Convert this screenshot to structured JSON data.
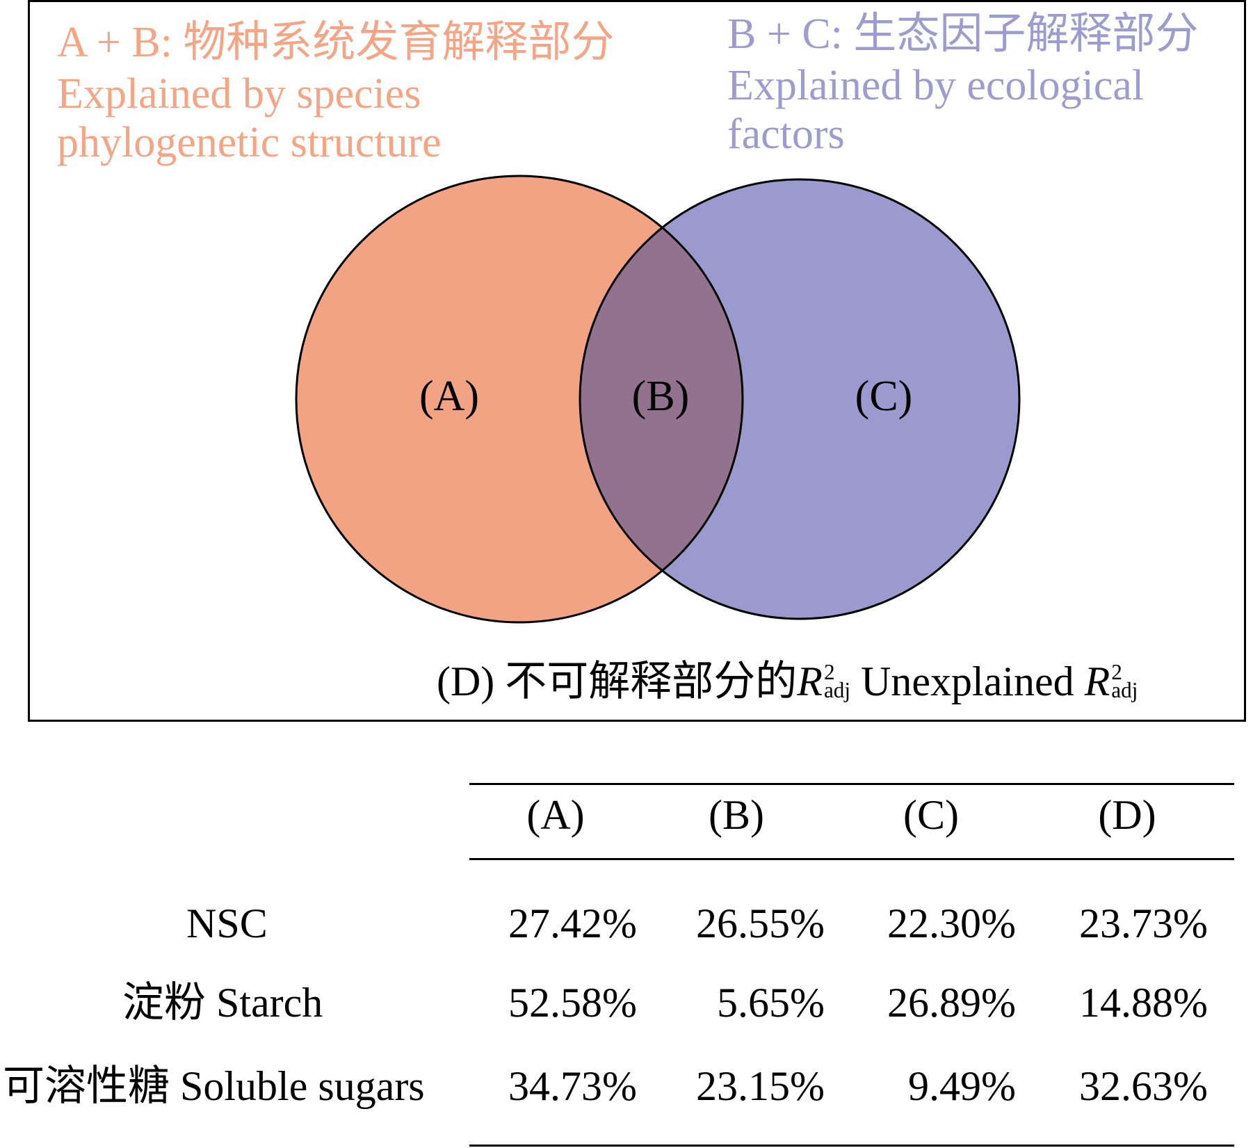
{
  "diagram": {
    "label_ab": {
      "zh": "A + B: 物种系统发育解释部分",
      "en_line1": "Explained by species",
      "en_line2": "phylogenetic structure",
      "color": "#F4A585"
    },
    "label_bc": {
      "zh": "B + C:  生态因子解释部分",
      "en_line1": "Explained by ecological",
      "en_line2": "factors",
      "color": "#9C9CCF"
    },
    "region_a": "(A)",
    "region_b": "(B)",
    "region_c": "(C)",
    "circle_colors": {
      "left": "#F2A384",
      "right": "#9A9ACE",
      "overlap": "#93728F"
    },
    "unexplained": {
      "prefix": "(D) 不可解释部分的",
      "r": "R",
      "sup": "2",
      "sub": "adj",
      "middle": " Unexplained ",
      "r2": "R",
      "sup2": "2",
      "sub2": "adj"
    }
  },
  "table": {
    "columns": [
      "(A)",
      "(B)",
      "(C)",
      "(D)"
    ],
    "rows": [
      {
        "label": "NSC",
        "values": [
          "27.42%",
          "26.55%",
          "22.30%",
          "23.73%"
        ]
      },
      {
        "label": "淀粉 Starch",
        "values": [
          "52.58%",
          "5.65%",
          "26.89%",
          "14.88%"
        ]
      },
      {
        "label": "可溶性糖 Soluble sugars",
        "values": [
          "34.73%",
          "23.15%",
          "9.49%",
          "32.63%"
        ]
      }
    ]
  }
}
